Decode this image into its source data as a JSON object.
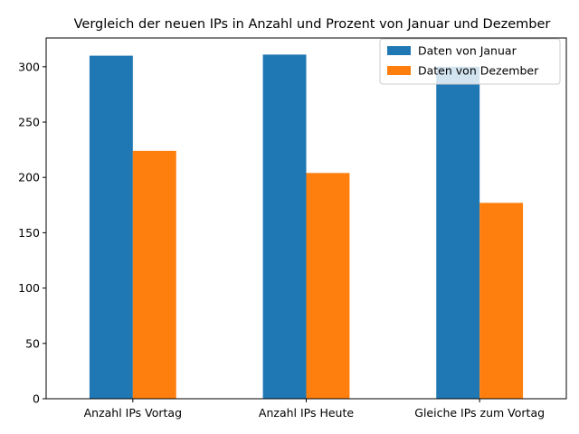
{
  "chart_data": {
    "type": "bar",
    "title": "Vergleich der neuen IPs in Anzahl und Prozent von Januar und Dezember",
    "xlabel": "",
    "ylabel": "",
    "categories": [
      "Anzahl IPs Vortag",
      "Anzahl IPs Heute",
      "Gleiche IPs zum Vortag"
    ],
    "series": [
      {
        "name": "Daten von Januar",
        "color": "#1f77b4",
        "values": [
          310,
          311,
          300
        ]
      },
      {
        "name": "Daten von Dezember",
        "color": "#ff7f0e",
        "values": [
          224,
          204,
          177
        ]
      }
    ],
    "ylim": [
      0,
      326
    ],
    "yticks": [
      0,
      50,
      100,
      150,
      200,
      250,
      300
    ],
    "grid": false,
    "legend_position": "top-right"
  }
}
